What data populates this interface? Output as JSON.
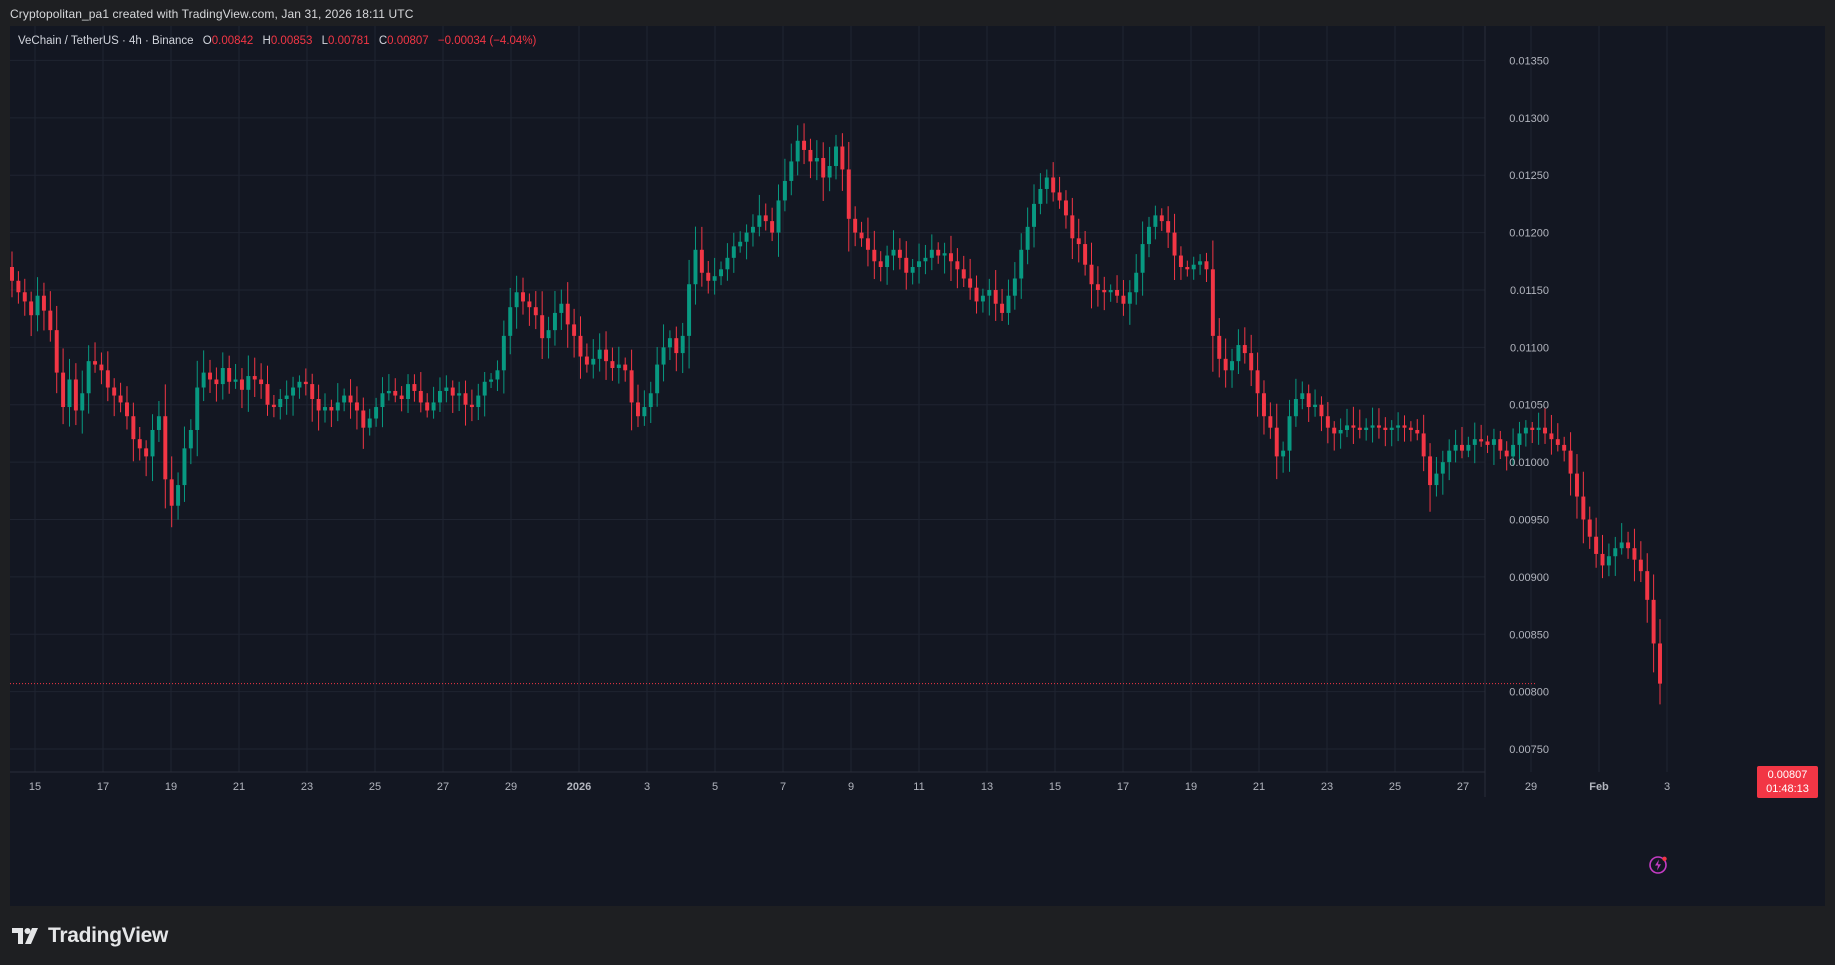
{
  "caption": "Cryptopolitan_pa1 created with TradingView.com, Jan 31, 2026 18:11 UTC",
  "legend": {
    "symbol": "VeChain / TetherUS · 4h · Binance",
    "o_label": "O",
    "o_value": "0.00842",
    "h_label": "H",
    "h_value": "0.00853",
    "l_label": "L",
    "l_value": "0.00781",
    "c_label": "C",
    "c_value": "0.00807",
    "change": "−0.00034 (−4.04%)"
  },
  "price_badge": {
    "price": "0.00807",
    "countdown": "01:48:13"
  },
  "brand": "TradingView",
  "icons": {
    "logo": "tradingview-logo-icon",
    "flash": "flash-icon"
  },
  "colors": {
    "up": "#089981",
    "down": "#f23645",
    "background": "#131722",
    "grid": "#1f2431"
  },
  "chart_data": {
    "type": "candlestick",
    "title": "VeChain / TetherUS · 4h · Binance",
    "ylim": [
      0.0073,
      0.0138
    ],
    "y_ticks": [
      "0.00750",
      "0.00800",
      "0.00850",
      "0.00900",
      "0.00950",
      "0.01000",
      "0.01050",
      "0.01100",
      "0.01150",
      "0.01200",
      "0.01250",
      "0.01300",
      "0.01350"
    ],
    "x_ticks": [
      "15",
      "17",
      "19",
      "21",
      "23",
      "25",
      "27",
      "29",
      "2026",
      "3",
      "5",
      "7",
      "9",
      "11",
      "13",
      "15",
      "17",
      "19",
      "21",
      "23",
      "25",
      "27",
      "29",
      "Feb",
      "3"
    ],
    "x_start": "Dec 14, 2025 12:00",
    "last_price": 0.00807,
    "close_series": [
      0.01158,
      0.01148,
      0.0114,
      0.01128,
      0.01145,
      0.01132,
      0.01115,
      0.01078,
      0.01048,
      0.01072,
      0.01045,
      0.0106,
      0.01088,
      0.01085,
      0.0108,
      0.01065,
      0.01058,
      0.01052,
      0.0104,
      0.0102,
      0.01012,
      0.01005,
      0.01028,
      0.0104,
      0.00985,
      0.00962,
      0.0098,
      0.01012,
      0.01028,
      0.01065,
      0.01078,
      0.01072,
      0.01068,
      0.01082,
      0.0107,
      0.01072,
      0.01063,
      0.01075,
      0.01072,
      0.01068,
      0.0105,
      0.01048,
      0.01055,
      0.01058,
      0.01065,
      0.0107,
      0.01068,
      0.01055,
      0.01045,
      0.01048,
      0.01045,
      0.01052,
      0.01058,
      0.01052,
      0.01045,
      0.0103,
      0.01038,
      0.01048,
      0.0106,
      0.01062,
      0.01058,
      0.01055,
      0.01068,
      0.01062,
      0.01052,
      0.01045,
      0.01052,
      0.01062,
      0.01065,
      0.01058,
      0.0106,
      0.0105,
      0.01048,
      0.01058,
      0.0107,
      0.01072,
      0.0108,
      0.0111,
      0.01135,
      0.01148,
      0.0114,
      0.01135,
      0.01128,
      0.01108,
      0.01115,
      0.0113,
      0.01138,
      0.0112,
      0.0111,
      0.01092,
      0.01085,
      0.0109,
      0.01098,
      0.01088,
      0.01082,
      0.01085,
      0.0108,
      0.01052,
      0.0104,
      0.01048,
      0.0106,
      0.01085,
      0.011,
      0.01108,
      0.01095,
      0.0111,
      0.01155,
      0.01185,
      0.01165,
      0.01158,
      0.01162,
      0.01168,
      0.01178,
      0.01188,
      0.01192,
      0.012,
      0.01205,
      0.01215,
      0.0121,
      0.012,
      0.01228,
      0.01245,
      0.01262,
      0.0128,
      0.01272,
      0.01262,
      0.01265,
      0.01248,
      0.01258,
      0.01275,
      0.01255,
      0.01212,
      0.012,
      0.01195,
      0.01185,
      0.01175,
      0.0117,
      0.0118,
      0.01185,
      0.01178,
      0.01165,
      0.0117,
      0.01175,
      0.01178,
      0.01185,
      0.0118,
      0.01182,
      0.01175,
      0.01168,
      0.0116,
      0.01152,
      0.0114,
      0.01145,
      0.0115,
      0.01138,
      0.0113,
      0.01145,
      0.0116,
      0.01185,
      0.01205,
      0.01225,
      0.01238,
      0.01248,
      0.01235,
      0.01228,
      0.01215,
      0.01195,
      0.0119,
      0.01172,
      0.01155,
      0.0115,
      0.01148,
      0.0115,
      0.01145,
      0.01138,
      0.01148,
      0.01165,
      0.0119,
      0.01205,
      0.01215,
      0.0121,
      0.012,
      0.0118,
      0.0117,
      0.01168,
      0.01172,
      0.01175,
      0.01168,
      0.0111,
      0.0109,
      0.0108,
      0.01088,
      0.01102,
      0.01095,
      0.0108,
      0.0106,
      0.0104,
      0.0103,
      0.01005,
      0.0101,
      0.0104,
      0.01055,
      0.0106,
      0.01048,
      0.0105,
      0.0104,
      0.0103,
      0.01025,
      0.01028,
      0.01032,
      0.0103,
      0.01028,
      0.0103,
      0.01032,
      0.0103,
      0.01028,
      0.0103,
      0.01032,
      0.0103,
      0.01028,
      0.01025,
      0.01005,
      0.0098,
      0.0099,
      0.01,
      0.0101,
      0.01015,
      0.0101,
      0.01015,
      0.0102,
      0.01018,
      0.01015,
      0.0102,
      0.0101,
      0.01005,
      0.01015,
      0.01025,
      0.0103,
      0.01028,
      0.0103,
      0.01025,
      0.0102,
      0.01015,
      0.0101,
      0.0099,
      0.0097,
      0.0095,
      0.00935,
      0.0092,
      0.0091,
      0.00918,
      0.00925,
      0.0093,
      0.00925,
      0.00915,
      0.00905,
      0.0088,
      0.00842,
      0.00807
    ]
  }
}
